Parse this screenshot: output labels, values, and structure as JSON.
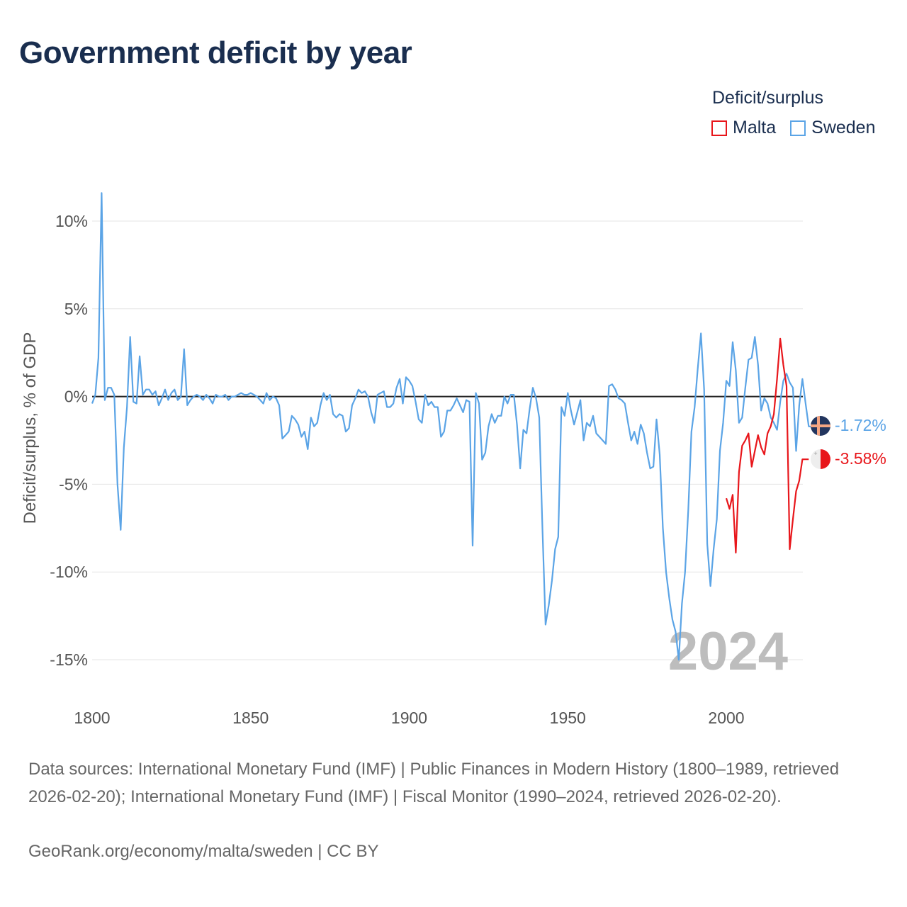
{
  "title": "Government deficit by year",
  "legend": {
    "title": "Deficit/surplus",
    "items": [
      {
        "name": "Malta",
        "color": "#e8161b"
      },
      {
        "name": "Sweden",
        "color": "#5ba4e6"
      }
    ]
  },
  "sources": "Data sources: International Monetary Fund (IMF) | Public Finances in Modern History (1800–1989, retrieved 2026-02-20); International Monetary Fund (IMF) | Fiscal Monitor (1990–2024, retrieved 2026-02-20).",
  "credit": "GeoRank.org/economy/malta/sweden | CC BY",
  "chart_data": {
    "type": "line",
    "title": "Government deficit by year",
    "xlabel": "",
    "ylabel": "Deficit/surplus, % of GDP",
    "xlim": [
      1800,
      2024
    ],
    "ylim": [
      -17,
      12
    ],
    "x_ticks": [
      1800,
      1850,
      1900,
      1950,
      2000
    ],
    "y_ticks": [
      10,
      5,
      0,
      -5,
      -10,
      -15
    ],
    "y_tick_labels": [
      "10%",
      "5%",
      "0%",
      "-5%",
      "-10%",
      "-15%"
    ],
    "year_label": "2024",
    "grid": true,
    "legend_position": "top-right",
    "series": [
      {
        "name": "Sweden",
        "color": "#5ba4e6",
        "end_label": "-1.72%",
        "points": [
          [
            1800,
            -0.4
          ],
          [
            1801,
            0.1
          ],
          [
            1802,
            2.2
          ],
          [
            1803,
            11.6
          ],
          [
            1804,
            -0.2
          ],
          [
            1805,
            0.5
          ],
          [
            1806,
            0.5
          ],
          [
            1807,
            0.1
          ],
          [
            1808,
            -5.0
          ],
          [
            1809,
            -7.6
          ],
          [
            1810,
            -2.9
          ],
          [
            1811,
            -0.6
          ],
          [
            1812,
            3.4
          ],
          [
            1813,
            -0.3
          ],
          [
            1814,
            -0.4
          ],
          [
            1815,
            2.3
          ],
          [
            1816,
            0.1
          ],
          [
            1817,
            0.4
          ],
          [
            1818,
            0.4
          ],
          [
            1819,
            0.1
          ],
          [
            1820,
            0.3
          ],
          [
            1821,
            -0.5
          ],
          [
            1822,
            -0.1
          ],
          [
            1823,
            0.4
          ],
          [
            1824,
            -0.2
          ],
          [
            1825,
            0.2
          ],
          [
            1826,
            0.4
          ],
          [
            1827,
            -0.2
          ],
          [
            1828,
            0.0
          ],
          [
            1829,
            2.7
          ],
          [
            1830,
            -0.5
          ],
          [
            1831,
            -0.2
          ],
          [
            1832,
            0.0
          ],
          [
            1833,
            0.1
          ],
          [
            1834,
            0.0
          ],
          [
            1835,
            -0.2
          ],
          [
            1836,
            0.1
          ],
          [
            1837,
            -0.1
          ],
          [
            1838,
            -0.4
          ],
          [
            1839,
            0.1
          ],
          [
            1840,
            0.0
          ],
          [
            1841,
            0.0
          ],
          [
            1842,
            0.1
          ],
          [
            1843,
            -0.2
          ],
          [
            1844,
            0.0
          ],
          [
            1845,
            0.0
          ],
          [
            1846,
            0.1
          ],
          [
            1847,
            0.2
          ],
          [
            1848,
            0.1
          ],
          [
            1849,
            0.1
          ],
          [
            1850,
            0.2
          ],
          [
            1851,
            0.1
          ],
          [
            1852,
            0.0
          ],
          [
            1853,
            -0.2
          ],
          [
            1854,
            -0.4
          ],
          [
            1855,
            0.2
          ],
          [
            1856,
            -0.2
          ],
          [
            1857,
            0.0
          ],
          [
            1858,
            -0.1
          ],
          [
            1859,
            -0.5
          ],
          [
            1860,
            -2.4
          ],
          [
            1861,
            -2.2
          ],
          [
            1862,
            -2.0
          ],
          [
            1863,
            -1.1
          ],
          [
            1864,
            -1.3
          ],
          [
            1865,
            -1.6
          ],
          [
            1866,
            -2.3
          ],
          [
            1867,
            -2.0
          ],
          [
            1868,
            -3.0
          ],
          [
            1869,
            -1.2
          ],
          [
            1870,
            -1.7
          ],
          [
            1871,
            -1.5
          ],
          [
            1872,
            -0.5
          ],
          [
            1873,
            0.2
          ],
          [
            1874,
            -0.2
          ],
          [
            1875,
            0.1
          ],
          [
            1876,
            -1.0
          ],
          [
            1877,
            -1.2
          ],
          [
            1878,
            -1.0
          ],
          [
            1879,
            -1.1
          ],
          [
            1880,
            -2.0
          ],
          [
            1881,
            -1.8
          ],
          [
            1882,
            -0.5
          ],
          [
            1883,
            -0.1
          ],
          [
            1884,
            0.4
          ],
          [
            1885,
            0.2
          ],
          [
            1886,
            0.3
          ],
          [
            1887,
            0.0
          ],
          [
            1888,
            -0.9
          ],
          [
            1889,
            -1.5
          ],
          [
            1890,
            0.1
          ],
          [
            1891,
            0.2
          ],
          [
            1892,
            0.3
          ],
          [
            1893,
            -0.6
          ],
          [
            1894,
            -0.6
          ],
          [
            1895,
            -0.4
          ],
          [
            1896,
            0.5
          ],
          [
            1897,
            1.0
          ],
          [
            1898,
            -0.4
          ],
          [
            1899,
            1.1
          ],
          [
            1900,
            0.9
          ],
          [
            1901,
            0.6
          ],
          [
            1902,
            -0.3
          ],
          [
            1903,
            -1.3
          ],
          [
            1904,
            -1.5
          ],
          [
            1905,
            0.1
          ],
          [
            1906,
            -0.5
          ],
          [
            1907,
            -0.3
          ],
          [
            1908,
            -0.6
          ],
          [
            1909,
            -0.6
          ],
          [
            1910,
            -2.3
          ],
          [
            1911,
            -2.0
          ],
          [
            1912,
            -0.8
          ],
          [
            1913,
            -0.8
          ],
          [
            1914,
            -0.5
          ],
          [
            1915,
            -0.1
          ],
          [
            1916,
            -0.5
          ],
          [
            1917,
            -0.9
          ],
          [
            1918,
            -0.2
          ],
          [
            1919,
            -0.3
          ],
          [
            1920,
            -8.5
          ],
          [
            1921,
            0.2
          ],
          [
            1922,
            -0.4
          ],
          [
            1923,
            -3.6
          ],
          [
            1924,
            -3.2
          ],
          [
            1925,
            -1.7
          ],
          [
            1926,
            -1.0
          ],
          [
            1927,
            -1.5
          ],
          [
            1928,
            -1.1
          ],
          [
            1929,
            -1.1
          ],
          [
            1930,
            0.0
          ],
          [
            1931,
            -0.4
          ],
          [
            1932,
            0.1
          ],
          [
            1933,
            0.1
          ],
          [
            1934,
            -1.6
          ],
          [
            1935,
            -4.1
          ],
          [
            1936,
            -1.9
          ],
          [
            1937,
            -2.1
          ],
          [
            1938,
            -0.7
          ],
          [
            1939,
            0.5
          ],
          [
            1940,
            -0.1
          ],
          [
            1941,
            -1.2
          ],
          [
            1942,
            -7.5
          ],
          [
            1943,
            -13.0
          ],
          [
            1944,
            -11.9
          ],
          [
            1945,
            -10.5
          ],
          [
            1946,
            -8.7
          ],
          [
            1947,
            -8.0
          ],
          [
            1948,
            -0.6
          ],
          [
            1949,
            -1.1
          ],
          [
            1950,
            0.2
          ],
          [
            1951,
            -0.8
          ],
          [
            1952,
            -1.6
          ],
          [
            1953,
            -0.9
          ],
          [
            1954,
            -0.2
          ],
          [
            1955,
            -2.5
          ],
          [
            1956,
            -1.5
          ],
          [
            1957,
            -1.7
          ],
          [
            1958,
            -1.1
          ],
          [
            1959,
            -2.1
          ],
          [
            1960,
            -2.3
          ],
          [
            1961,
            -2.5
          ],
          [
            1962,
            -2.7
          ],
          [
            1963,
            0.6
          ],
          [
            1964,
            0.7
          ],
          [
            1965,
            0.4
          ],
          [
            1966,
            -0.1
          ],
          [
            1967,
            -0.2
          ],
          [
            1968,
            -0.4
          ],
          [
            1969,
            -1.5
          ],
          [
            1970,
            -2.5
          ],
          [
            1971,
            -2.0
          ],
          [
            1972,
            -2.7
          ],
          [
            1973,
            -1.6
          ],
          [
            1974,
            -2.1
          ],
          [
            1975,
            -3.2
          ],
          [
            1976,
            -4.1
          ],
          [
            1977,
            -4.0
          ],
          [
            1978,
            -1.3
          ],
          [
            1979,
            -3.3
          ],
          [
            1980,
            -7.5
          ],
          [
            1981,
            -10.0
          ],
          [
            1982,
            -11.5
          ],
          [
            1983,
            -12.7
          ],
          [
            1984,
            -13.4
          ],
          [
            1985,
            -15.0
          ],
          [
            1986,
            -11.8
          ],
          [
            1987,
            -10.0
          ],
          [
            1988,
            -6.5
          ],
          [
            1989,
            -2.0
          ],
          [
            1990,
            -0.6
          ],
          [
            1991,
            1.6
          ],
          [
            1992,
            3.6
          ],
          [
            1993,
            0.4
          ],
          [
            1994,
            -8.4
          ],
          [
            1995,
            -10.8
          ],
          [
            1996,
            -8.7
          ],
          [
            1997,
            -7.0
          ],
          [
            1998,
            -3.1
          ],
          [
            1999,
            -1.5
          ],
          [
            2000,
            0.9
          ],
          [
            2001,
            0.6
          ],
          [
            2002,
            3.1
          ],
          [
            2003,
            1.5
          ],
          [
            2004,
            -1.5
          ],
          [
            2005,
            -1.2
          ],
          [
            2006,
            0.5
          ],
          [
            2007,
            2.1
          ],
          [
            2008,
            2.2
          ],
          [
            2009,
            3.4
          ],
          [
            2010,
            1.8
          ],
          [
            2011,
            -0.8
          ],
          [
            2012,
            -0.1
          ],
          [
            2013,
            -0.4
          ],
          [
            2014,
            -1.2
          ],
          [
            2015,
            -1.5
          ],
          [
            2016,
            -1.9
          ],
          [
            2017,
            -0.3
          ],
          [
            2018,
            0.9
          ],
          [
            2019,
            1.3
          ],
          [
            2020,
            0.8
          ],
          [
            2021,
            0.5
          ],
          [
            2022,
            -3.1
          ],
          [
            2023,
            -0.5
          ],
          [
            2024,
            1.0
          ],
          [
            2025,
            -0.4
          ],
          [
            2026,
            -1.7
          ],
          [
            2027,
            -1.72
          ]
        ]
      },
      {
        "name": "Malta",
        "color": "#e8161b",
        "end_label": "-3.58%",
        "points": [
          [
            2000,
            -5.8
          ],
          [
            2001,
            -6.4
          ],
          [
            2002,
            -5.6
          ],
          [
            2003,
            -8.9
          ],
          [
            2004,
            -4.3
          ],
          [
            2005,
            -2.8
          ],
          [
            2006,
            -2.5
          ],
          [
            2007,
            -2.1
          ],
          [
            2008,
            -4.0
          ],
          [
            2009,
            -3.1
          ],
          [
            2010,
            -2.2
          ],
          [
            2011,
            -2.9
          ],
          [
            2012,
            -3.3
          ],
          [
            2013,
            -2.1
          ],
          [
            2014,
            -1.7
          ],
          [
            2015,
            -1.0
          ],
          [
            2016,
            1.0
          ],
          [
            2017,
            3.3
          ],
          [
            2018,
            1.8
          ],
          [
            2019,
            0.6
          ],
          [
            2020,
            -8.7
          ],
          [
            2021,
            -7.0
          ],
          [
            2022,
            -5.4
          ],
          [
            2023,
            -4.8
          ],
          [
            2024,
            -3.58
          ],
          [
            2026,
            -3.58
          ]
        ]
      }
    ]
  }
}
